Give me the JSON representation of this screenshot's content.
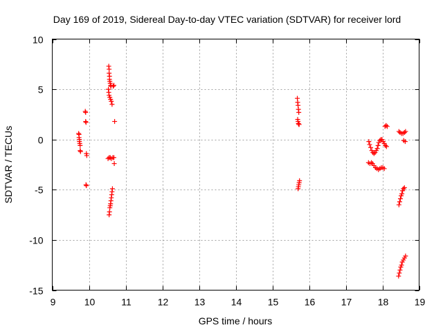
{
  "chart_data": {
    "type": "scatter",
    "title": "Day 169 of 2019, Sidereal Day-to-day VTEC variation (SDTVAR) for receiver lord",
    "xlabel": "GPS time / hours",
    "ylabel": "SDTVAR / TECUs",
    "xlim": [
      9,
      19
    ],
    "ylim": [
      -15,
      10
    ],
    "xticks": [
      9,
      10,
      11,
      12,
      13,
      14,
      15,
      16,
      17,
      18,
      19
    ],
    "yticks": [
      -15,
      -10,
      -5,
      0,
      5,
      10
    ],
    "grid": true,
    "marker": "+",
    "color": "#ff0000",
    "series": [
      {
        "name": "SDTVAR",
        "points": [
          [
            9.72,
            0.6
          ],
          [
            9.73,
            0.5
          ],
          [
            9.73,
            0.2
          ],
          [
            9.74,
            0.0
          ],
          [
            9.74,
            -0.2
          ],
          [
            9.75,
            -0.4
          ],
          [
            9.76,
            -0.6
          ],
          [
            9.76,
            -1.1
          ],
          [
            9.77,
            -1.2
          ],
          [
            9.9,
            2.8
          ],
          [
            9.91,
            2.7
          ],
          [
            9.91,
            1.8
          ],
          [
            9.92,
            1.7
          ],
          [
            9.93,
            -1.4
          ],
          [
            9.94,
            -1.6
          ],
          [
            9.92,
            -4.5
          ],
          [
            9.93,
            -4.6
          ],
          [
            10.54,
            7.3
          ],
          [
            10.55,
            7.0
          ],
          [
            10.55,
            6.6
          ],
          [
            10.56,
            6.3
          ],
          [
            10.56,
            6.0
          ],
          [
            10.57,
            5.8
          ],
          [
            10.58,
            5.6
          ],
          [
            10.59,
            5.4
          ],
          [
            10.6,
            5.3
          ],
          [
            10.53,
            5.0
          ],
          [
            10.54,
            4.7
          ],
          [
            10.55,
            4.4
          ],
          [
            10.57,
            4.2
          ],
          [
            10.59,
            4.0
          ],
          [
            10.61,
            3.8
          ],
          [
            10.63,
            3.5
          ],
          [
            10.68,
            5.4
          ],
          [
            10.66,
            5.3
          ],
          [
            10.7,
            1.8
          ],
          [
            10.52,
            -1.9
          ],
          [
            10.55,
            -1.8
          ],
          [
            10.58,
            -1.8
          ],
          [
            10.61,
            -1.9
          ],
          [
            10.65,
            -1.8
          ],
          [
            10.68,
            -1.8
          ],
          [
            10.69,
            -2.4
          ],
          [
            10.64,
            -4.9
          ],
          [
            10.63,
            -5.2
          ],
          [
            10.62,
            -5.5
          ],
          [
            10.61,
            -5.8
          ],
          [
            10.6,
            -6.1
          ],
          [
            10.59,
            -6.4
          ],
          [
            10.58,
            -6.6
          ],
          [
            10.57,
            -6.8
          ],
          [
            10.56,
            -7.2
          ],
          [
            10.55,
            -7.5
          ],
          [
            15.68,
            4.1
          ],
          [
            15.69,
            3.7
          ],
          [
            15.7,
            3.4
          ],
          [
            15.71,
            3.0
          ],
          [
            15.72,
            2.7
          ],
          [
            15.69,
            2.0
          ],
          [
            15.7,
            1.8
          ],
          [
            15.71,
            1.6
          ],
          [
            15.72,
            1.5
          ],
          [
            15.73,
            1.5
          ],
          [
            15.74,
            -4.1
          ],
          [
            15.73,
            -4.3
          ],
          [
            15.72,
            -4.5
          ],
          [
            15.71,
            -4.7
          ],
          [
            15.7,
            -4.9
          ],
          [
            17.63,
            -0.2
          ],
          [
            17.65,
            -0.5
          ],
          [
            17.68,
            -0.8
          ],
          [
            17.71,
            -1.1
          ],
          [
            17.74,
            -1.3
          ],
          [
            17.77,
            -1.4
          ],
          [
            17.8,
            -1.3
          ],
          [
            17.83,
            -1.1
          ],
          [
            17.86,
            -0.9
          ],
          [
            17.88,
            -0.6
          ],
          [
            17.9,
            -0.3
          ],
          [
            17.93,
            -0.1
          ],
          [
            17.96,
            0.0
          ],
          [
            17.99,
            0.0
          ],
          [
            18.02,
            -0.2
          ],
          [
            18.05,
            -0.4
          ],
          [
            18.08,
            -0.6
          ],
          [
            18.11,
            -0.7
          ],
          [
            17.62,
            -2.3
          ],
          [
            17.66,
            -2.4
          ],
          [
            17.7,
            -2.3
          ],
          [
            17.73,
            -2.4
          ],
          [
            17.77,
            -2.6
          ],
          [
            17.81,
            -2.8
          ],
          [
            17.85,
            -2.9
          ],
          [
            17.89,
            -3.0
          ],
          [
            17.93,
            -2.9
          ],
          [
            17.97,
            -2.8
          ],
          [
            18.01,
            -2.8
          ],
          [
            18.05,
            -2.9
          ],
          [
            18.07,
            1.3
          ],
          [
            18.1,
            1.4
          ],
          [
            18.13,
            1.3
          ],
          [
            18.45,
            0.8
          ],
          [
            18.48,
            0.7
          ],
          [
            18.52,
            0.6
          ],
          [
            18.56,
            0.6
          ],
          [
            18.6,
            0.7
          ],
          [
            18.63,
            0.8
          ],
          [
            18.58,
            -0.1
          ],
          [
            18.62,
            -0.2
          ],
          [
            18.45,
            -6.5
          ],
          [
            18.47,
            -6.2
          ],
          [
            18.49,
            -5.9
          ],
          [
            18.51,
            -5.6
          ],
          [
            18.53,
            -5.4
          ],
          [
            18.55,
            -5.1
          ],
          [
            18.57,
            -4.9
          ],
          [
            18.6,
            -4.8
          ],
          [
            18.44,
            -13.6
          ],
          [
            18.46,
            -13.3
          ],
          [
            18.48,
            -13.0
          ],
          [
            18.5,
            -12.7
          ],
          [
            18.52,
            -12.5
          ],
          [
            18.54,
            -12.2
          ],
          [
            18.57,
            -12.0
          ],
          [
            18.6,
            -11.8
          ],
          [
            18.63,
            -11.6
          ]
        ]
      }
    ]
  }
}
